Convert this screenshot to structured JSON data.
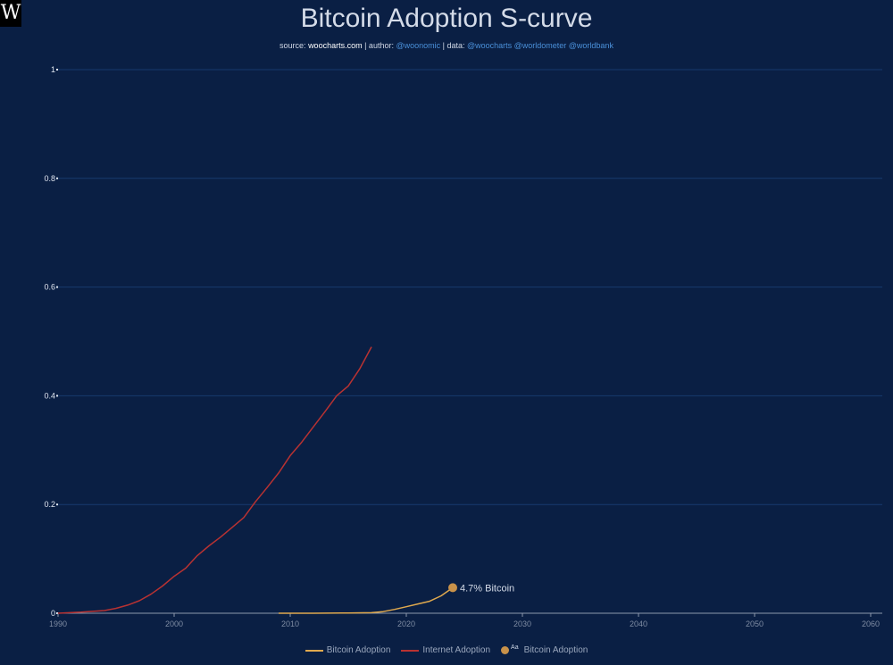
{
  "header": {
    "logo": "W",
    "title": "Bitcoin Adoption S-curve",
    "source_prefix": "source: ",
    "source_site": "woocharts.com",
    "author_prefix": " | author: ",
    "author_handle": "@woonomic",
    "data_prefix": " | data: ",
    "data_handles": "@woocharts @worldometer @worldbank"
  },
  "chart_data": {
    "type": "line",
    "title": "Bitcoin Adoption S-curve",
    "xlim": [
      1990,
      2061
    ],
    "ylim": [
      0,
      1
    ],
    "x_ticks": [
      1990,
      2000,
      2010,
      2020,
      2030,
      2040,
      2050,
      2060
    ],
    "y_ticks": [
      0,
      0.2,
      0.4,
      0.6,
      0.8,
      1
    ],
    "y_tick_labels": [
      "0",
      "0.2",
      "0.4",
      "0.6",
      "0.8",
      "1"
    ],
    "grid": "horizontal",
    "legend_position": "bottom",
    "series": [
      {
        "name": "Bitcoin Adoption",
        "color": "#e0a94e",
        "x": [
          2009,
          2012,
          2015,
          2017,
          2018,
          2019,
          2020,
          2021,
          2022,
          2023,
          2024
        ],
        "y": [
          0,
          0,
          0.0005,
          0.001,
          0.003,
          0.007,
          0.012,
          0.017,
          0.022,
          0.032,
          0.047
        ]
      },
      {
        "name": "Internet Adoption",
        "color": "#b83232",
        "x": [
          1990,
          1992,
          1994,
          1995,
          1996,
          1997,
          1998,
          1999,
          2000,
          2001,
          2002,
          2003,
          2004,
          2005,
          2006,
          2007,
          2008,
          2009,
          2010,
          2011,
          2012,
          2013,
          2014,
          2015,
          2016,
          2017
        ],
        "y": [
          0,
          0.002,
          0.005,
          0.009,
          0.015,
          0.023,
          0.035,
          0.05,
          0.068,
          0.083,
          0.106,
          0.124,
          0.14,
          0.158,
          0.176,
          0.205,
          0.231,
          0.258,
          0.29,
          0.315,
          0.343,
          0.371,
          0.4,
          0.418,
          0.45,
          0.49
        ]
      }
    ],
    "annotation": {
      "series": "Bitcoin Adoption",
      "x": 2024,
      "y": 0.047,
      "text": "4.7% Bitcoin",
      "color": "#c9924a"
    },
    "legend": [
      {
        "label": "Bitcoin Adoption",
        "kind": "line",
        "color": "#e0a94e"
      },
      {
        "label": "Internet Adoption",
        "kind": "line",
        "color": "#b83232"
      },
      {
        "label": "Bitcoin Adoption",
        "kind": "marker-text",
        "marker_text": "Aa",
        "color": "#c9924a"
      }
    ]
  }
}
